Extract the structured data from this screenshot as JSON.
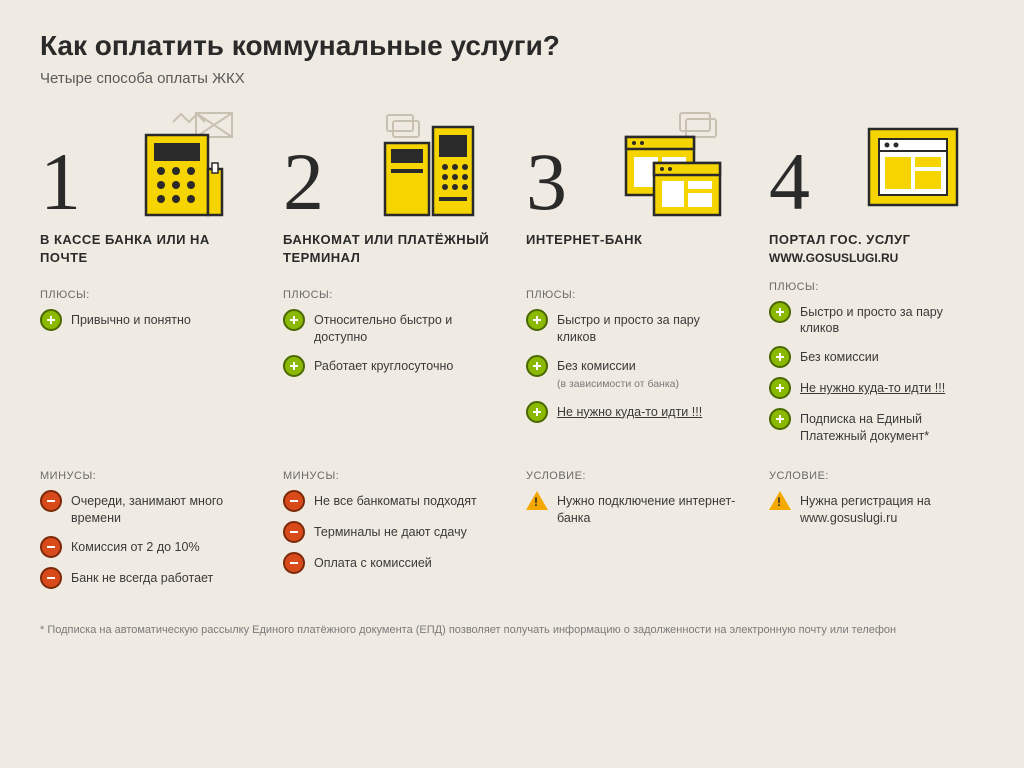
{
  "title": "Как оплатить коммунальные услуги?",
  "subtitle": "Четыре способа оплаты ЖКХ",
  "labels": {
    "pros": "ПЛЮСЫ:",
    "cons": "МИНУСЫ:",
    "cond": "УСЛОВИЕ:"
  },
  "colors": {
    "bg": "#f0ebe2",
    "accent": "#f5d400",
    "accent_dark": "#2a2a2a",
    "plus_fill": "#8bb800",
    "plus_border": "#4a6800",
    "minus_fill": "#d84a1a",
    "minus_border": "#7a2a0a",
    "warn_fill": "#f5a800"
  },
  "methods": [
    {
      "num": "1",
      "title": "В КАССЕ БАНКА ИЛИ НА ПОЧТЕ",
      "pros": [
        {
          "text": "Привычно и понятно"
        }
      ],
      "cons": [
        {
          "text": "Очереди, занимают много времени"
        },
        {
          "text": "Комиссия от 2 до 10%"
        },
        {
          "text": "Банк не всегда работает"
        }
      ]
    },
    {
      "num": "2",
      "title": "БАНКОМАТ ИЛИ ПЛАТЁЖНЫЙ ТЕРМИНАЛ",
      "pros": [
        {
          "text": "Относительно быстро и доступно"
        },
        {
          "text": "Работает круглосуточно"
        }
      ],
      "cons": [
        {
          "text": "Не все банкоматы подходят"
        },
        {
          "text": "Терминалы не дают сдачу"
        },
        {
          "text": "Оплата с комиссией"
        }
      ]
    },
    {
      "num": "3",
      "title": "ИНТЕРНЕТ-БАНК",
      "pros": [
        {
          "text": "Быстро и просто за пару кликов"
        },
        {
          "text": "Без комиссии",
          "sub": "(в зависимости от банка)"
        },
        {
          "text": "Не нужно куда-то идти !!!",
          "underline": true
        }
      ],
      "cond": [
        {
          "text": "Нужно подключение интернет-банка"
        }
      ]
    },
    {
      "num": "4",
      "title": "ПОРТАЛ ГОС. УСЛУГ",
      "url": "WWW.GOSUSLUGI.RU",
      "pros": [
        {
          "text": "Быстро и просто за пару кликов"
        },
        {
          "text": "Без комиссии"
        },
        {
          "text": "Не нужно куда-то идти !!!",
          "underline": true
        },
        {
          "text": "Подписка на Единый Платежный документ*"
        }
      ],
      "cond": [
        {
          "text": "Нужна регистрация на www.gosuslugi.ru"
        }
      ]
    }
  ],
  "footnote": "* Подписка на автоматическую рассылку Единого платёжного документа (ЕПД) позволяет получать информацию о задолженности на электронную почту или телефон"
}
